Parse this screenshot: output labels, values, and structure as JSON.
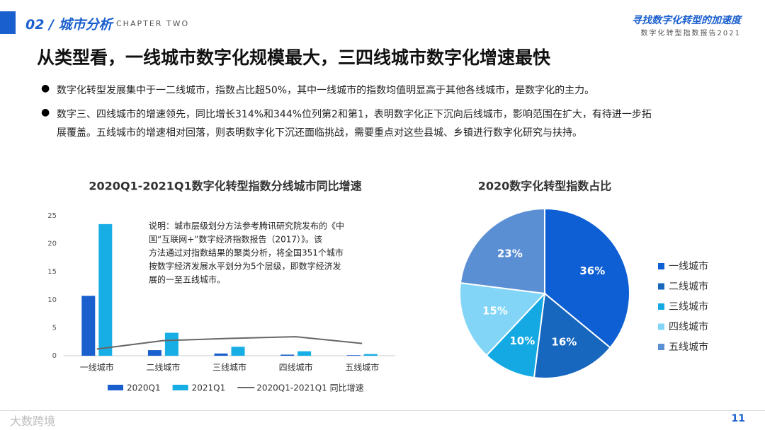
{
  "header": {
    "section": "02 / 城市分析",
    "chapter": "CHAPTER TWO",
    "slogan": "寻找数字化转型的加速度",
    "report": "数字化转型指数报告2021"
  },
  "title": "从类型看，一线城市数字化规模最大，三四线城市数字化增速最快",
  "bullets": [
    "数字化转型发展集中于一二线城市，指数占比超50%，其中一线城市的指数均值明显高于其他各线城市，是数字化的主力。",
    "数字三、四线城市的增速领先，同比增长314%和344%位列第2和第1，表明数字化正下沉向后线城市，影响范围在扩大，有待进一步拓",
    "展覆盖。五线城市的增速相对回落，则表明数字化下沉还面临挑战，需要重点对这些县城、乡镇进行数字化研究与扶持。"
  ],
  "footer": {
    "brand": "大数跨境",
    "page": "11"
  },
  "chart_data": [
    {
      "type": "bar",
      "title": "2020Q1-2021Q1数字化转型指数分线城市同比增速",
      "annotation": [
        "说明：城市层级划分方法参考腾讯研究院发布的《中",
        "国“互联网+”数字经济指数报告（2017）》。该",
        "方法通过对指数结果的聚类分析，将全国351个城市",
        "按数字经济发展水平划分为5个层级，即数字经济发",
        "展的一至五线城市。"
      ],
      "categories": [
        "一线城市",
        "二线城市",
        "三线城市",
        "四线城市",
        "五线城市"
      ],
      "series": [
        {
          "name": "2020Q1",
          "color": "#1a5fce",
          "type": "bar",
          "values": [
            10.7,
            1.0,
            0.4,
            0.2,
            0.1
          ]
        },
        {
          "name": "2021Q1",
          "color": "#17aee6",
          "type": "bar",
          "values": [
            23.5,
            4.1,
            1.6,
            0.8,
            0.3
          ]
        },
        {
          "name": "2020Q1-2021Q1 同比增速",
          "color": "#666666",
          "type": "line",
          "values": [
            1.2,
            2.7,
            3.1,
            3.4,
            2.2
          ]
        }
      ],
      "ylim": [
        0,
        25
      ],
      "yticks": [
        0,
        5,
        10,
        15,
        20,
        25
      ]
    },
    {
      "type": "pie",
      "title": "2020数字化转型指数占比",
      "categories": [
        "一线城市",
        "二线城市",
        "三线城市",
        "四线城市",
        "五线城市"
      ],
      "values": [
        36,
        16,
        10,
        15,
        23
      ],
      "value_labels": [
        "36%",
        "16%",
        "10%",
        "15%",
        "23%"
      ],
      "colors": [
        "#0e5fd4",
        "#1767bf",
        "#14a9e2",
        "#82d5f6",
        "#5b8fd4"
      ]
    }
  ]
}
